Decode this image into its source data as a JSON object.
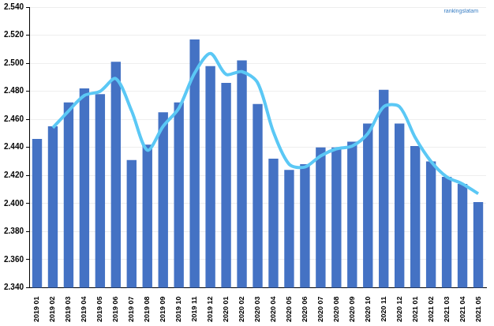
{
  "chart_data": {
    "type": "bar",
    "annotation": "rankingslatam",
    "categories": [
      "2019 01",
      "2019 02",
      "2019 03",
      "2019 04",
      "2019 05",
      "2019 06",
      "2019 07",
      "2019 08",
      "2019 09",
      "2019 10",
      "2019 11",
      "2019 12",
      "2020 01",
      "2020 02",
      "2020 03",
      "2020 04",
      "2020 05",
      "2020 06",
      "2020 07",
      "2020 08",
      "2020 09",
      "2020 10",
      "2020 11",
      "2020 12",
      "2021 01",
      "2021 02",
      "2021 03",
      "2021 04",
      "2021 05"
    ],
    "series": [
      {
        "type": "bar",
        "color": "#4472c4",
        "values": [
          2446,
          2455,
          2472,
          2482,
          2478,
          2501,
          2431,
          2442,
          2465,
          2472,
          2517,
          2498,
          2486,
          2502,
          2471,
          2432,
          2424,
          2428,
          2440,
          2440,
          2444,
          2457,
          2481,
          2457,
          2441,
          2430,
          2419,
          2414,
          2401
        ]
      },
      {
        "type": "line",
        "color": "#5bc8f5",
        "values": [
          null,
          2454,
          2466,
          2477,
          2480,
          2489,
          2466,
          2438,
          2455,
          2468,
          2493,
          2507,
          2492,
          2494,
          2486,
          2451,
          2428,
          2426,
          2434,
          2439,
          2441,
          2450,
          2469,
          2469,
          2447,
          2430,
          2419,
          2414,
          2407
        ]
      }
    ],
    "ylim": [
      2340,
      2540
    ],
    "yticks": [
      {
        "value": 2340,
        "label": "2.340"
      },
      {
        "value": 2360,
        "label": "2.360"
      },
      {
        "value": 2380,
        "label": "2.380"
      },
      {
        "value": 2400,
        "label": "2.400"
      },
      {
        "value": 2420,
        "label": "2.420"
      },
      {
        "value": 2440,
        "label": "2.440"
      },
      {
        "value": 2460,
        "label": "2.460"
      },
      {
        "value": 2480,
        "label": "2.480"
      },
      {
        "value": 2500,
        "label": "2.500"
      },
      {
        "value": 2520,
        "label": "2.520"
      },
      {
        "value": 2540,
        "label": "2.540"
      }
    ],
    "grid": true
  }
}
